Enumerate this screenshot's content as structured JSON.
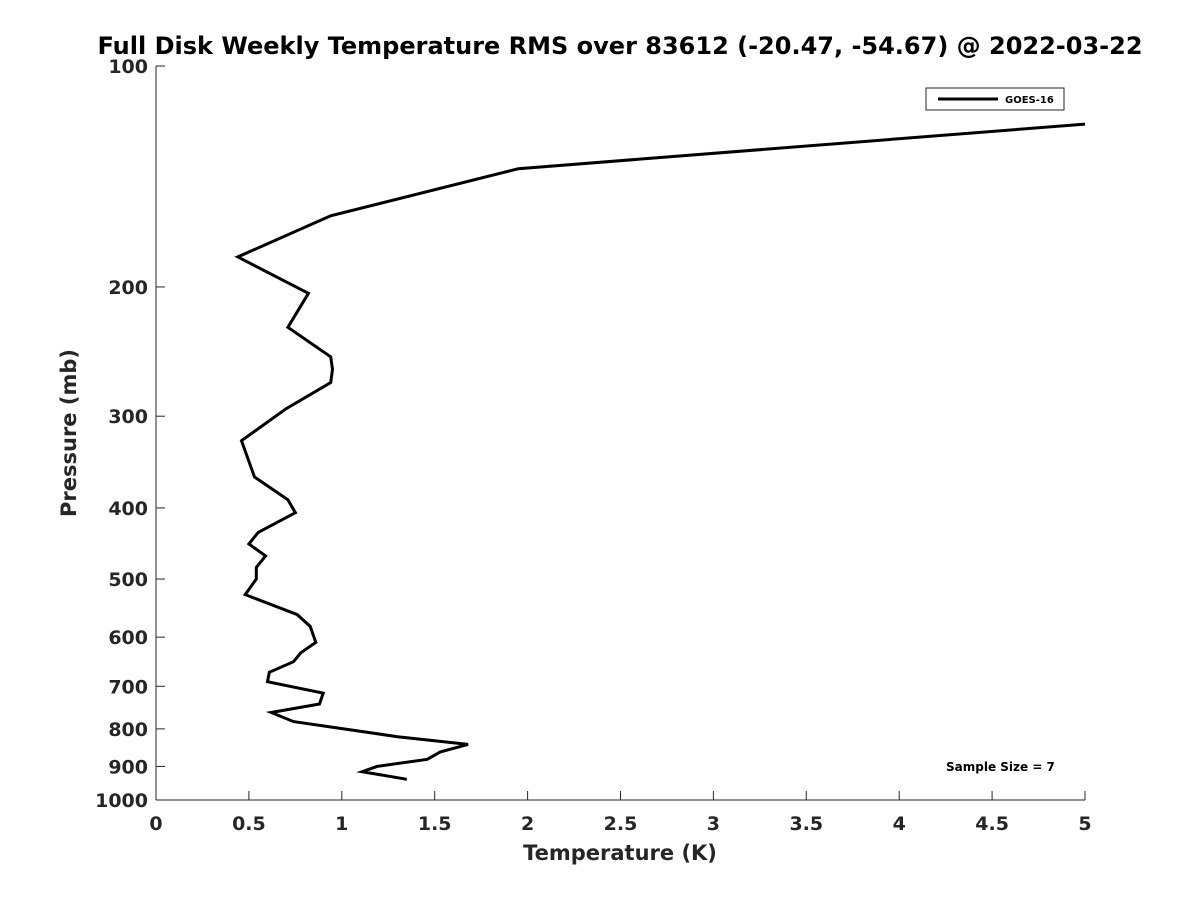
{
  "chart_data": {
    "type": "line",
    "title": "Full Disk Weekly Temperature RMS over 83612 (-20.47, -54.67) @ 2022-03-22",
    "xlabel": "Temperature (K)",
    "ylabel": "Pressure (mb)",
    "xlim": [
      0,
      5
    ],
    "ylim": [
      100,
      1000
    ],
    "y_scale": "log",
    "y_reversed": true,
    "xticks": [
      0,
      0.5,
      1,
      1.5,
      2,
      2.5,
      3,
      3.5,
      4,
      4.5,
      5
    ],
    "xtick_labels": [
      "0",
      "0.5",
      "1",
      "1.5",
      "2",
      "2.5",
      "3",
      "3.5",
      "4",
      "4.5",
      "5"
    ],
    "yticks": [
      100,
      200,
      300,
      400,
      500,
      600,
      700,
      800,
      900,
      1000
    ],
    "ytick_labels": [
      "100",
      "200",
      "300",
      "400",
      "500",
      "600",
      "700",
      "800",
      "900",
      "1000"
    ],
    "grid": false,
    "legend_position": "top-right",
    "annotation": "Sample Size = 7",
    "series": [
      {
        "name": "GOES-16",
        "color": "#000000",
        "x": [
          5.0,
          1.95,
          0.94,
          0.44,
          0.82,
          0.71,
          0.94,
          0.95,
          0.94,
          0.7,
          0.46,
          0.53,
          0.71,
          0.75,
          0.55,
          0.5,
          0.59,
          0.54,
          0.54,
          0.48,
          0.76,
          0.83,
          0.86,
          0.78,
          0.74,
          0.61,
          0.6,
          0.9,
          0.88,
          0.62,
          0.74,
          1.3,
          1.68,
          1.53,
          1.46,
          1.19,
          1.11,
          1.35
        ],
        "y": [
          120,
          138,
          160,
          182,
          204,
          227,
          249,
          259,
          270,
          293,
          324,
          363,
          390,
          406,
          432,
          448,
          465,
          482,
          500,
          525,
          559,
          580,
          610,
          630,
          648,
          670,
          690,
          715,
          740,
          760,
          782,
          820,
          840,
          860,
          880,
          900,
          915,
          937
        ]
      }
    ]
  }
}
